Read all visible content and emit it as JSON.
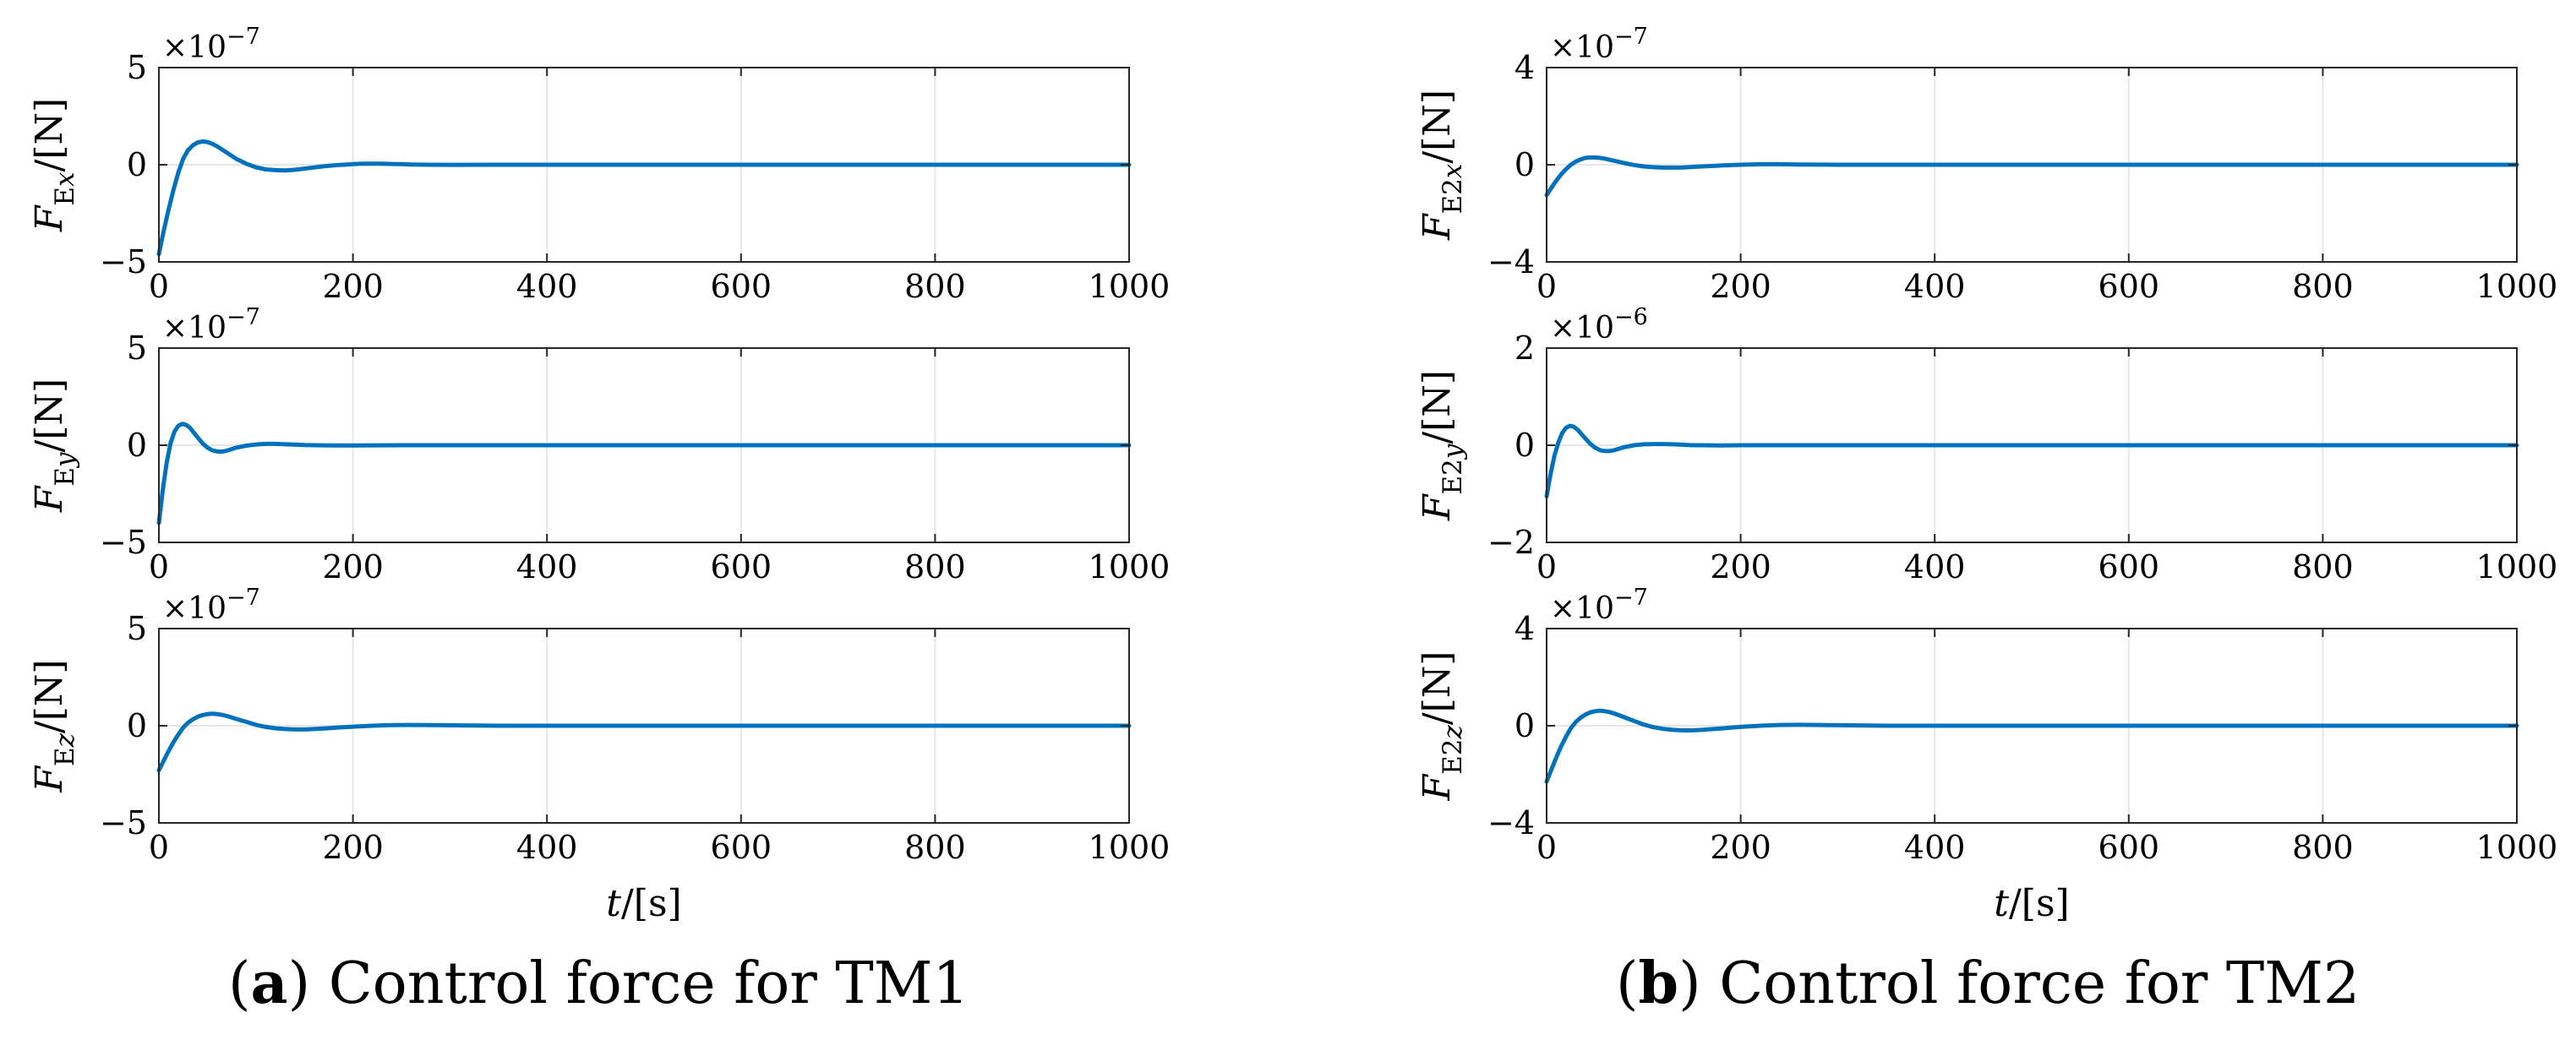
{
  "chart_data": [
    {
      "type": "line",
      "panel": "a",
      "row": 0,
      "ylabel": {
        "symbol": "F",
        "subscript": "Ex",
        "subscript_parts": [
          "E",
          "x"
        ],
        "unit": "/[N]"
      },
      "exponent": "×10",
      "exponent_power": "−7",
      "ylim": [
        -5,
        5
      ],
      "yticks": [
        -5,
        0,
        5
      ],
      "ytick_labels": [
        "−5",
        "0",
        "5"
      ],
      "xlim": [
        0,
        1000
      ],
      "xticks": [
        0,
        200,
        400,
        600,
        800,
        1000
      ],
      "xtick_labels": [
        "0",
        "200",
        "400",
        "600",
        "800",
        "1000"
      ],
      "grid": true,
      "series": [
        {
          "name": "FEx",
          "color": "#0072BD",
          "x": [
            0,
            5,
            10,
            15,
            20,
            25,
            30,
            35,
            40,
            45,
            50,
            55,
            60,
            70,
            80,
            90,
            100,
            110,
            120,
            130,
            140,
            150,
            160,
            170,
            180,
            190,
            200,
            210,
            220,
            230,
            240,
            250,
            260,
            280,
            300,
            350,
            400,
            500,
            600,
            700,
            800,
            900,
            1000
          ],
          "y": [
            -4.6,
            -3.4,
            -2.3,
            -1.3,
            -0.4,
            0.3,
            0.75,
            1.0,
            1.15,
            1.2,
            1.17,
            1.08,
            0.95,
            0.62,
            0.3,
            0.05,
            -0.13,
            -0.24,
            -0.28,
            -0.29,
            -0.26,
            -0.2,
            -0.14,
            -0.08,
            -0.03,
            0.0,
            0.03,
            0.05,
            0.055,
            0.05,
            0.04,
            0.03,
            0.015,
            0.0,
            -0.005,
            0,
            0,
            0,
            0,
            0,
            0,
            0,
            0
          ]
        }
      ]
    },
    {
      "type": "line",
      "panel": "a",
      "row": 1,
      "ylabel": {
        "symbol": "F",
        "subscript": "Ey",
        "subscript_parts": [
          "E",
          "y"
        ],
        "unit": "/[N]"
      },
      "exponent": "×10",
      "exponent_power": "−7",
      "ylim": [
        -5,
        5
      ],
      "yticks": [
        -5,
        0,
        5
      ],
      "ytick_labels": [
        "−5",
        "0",
        "5"
      ],
      "xlim": [
        0,
        1000
      ],
      "xticks": [
        0,
        200,
        400,
        600,
        800,
        1000
      ],
      "xtick_labels": [
        "0",
        "200",
        "400",
        "600",
        "800",
        "1000"
      ],
      "grid": true,
      "series": [
        {
          "name": "FEy",
          "color": "#0072BD",
          "x": [
            0,
            4,
            8,
            12,
            16,
            20,
            24,
            28,
            32,
            36,
            40,
            45,
            50,
            55,
            60,
            65,
            70,
            75,
            80,
            90,
            100,
            110,
            120,
            130,
            140,
            150,
            160,
            180,
            200,
            250,
            300,
            400,
            500,
            600,
            700,
            800,
            900,
            1000
          ],
          "y": [
            -4.0,
            -2.3,
            -0.9,
            0.1,
            0.7,
            1.0,
            1.1,
            1.05,
            0.9,
            0.65,
            0.4,
            0.1,
            -0.12,
            -0.26,
            -0.32,
            -0.33,
            -0.28,
            -0.2,
            -0.12,
            -0.02,
            0.04,
            0.07,
            0.07,
            0.05,
            0.03,
            0.01,
            0.0,
            -0.01,
            -0.01,
            0,
            0,
            0,
            0,
            0,
            0,
            0,
            0,
            0
          ]
        }
      ]
    },
    {
      "type": "line",
      "panel": "a",
      "row": 2,
      "ylabel": {
        "symbol": "F",
        "subscript": "Ez",
        "subscript_parts": [
          "E",
          "z"
        ],
        "unit": "/[N]"
      },
      "exponent": "×10",
      "exponent_power": "−7",
      "ylim": [
        -5,
        5
      ],
      "yticks": [
        -5,
        0,
        5
      ],
      "ytick_labels": [
        "−5",
        "0",
        "5"
      ],
      "xlim": [
        0,
        1000
      ],
      "xticks": [
        0,
        200,
        400,
        600,
        800,
        1000
      ],
      "xtick_labels": [
        "0",
        "200",
        "400",
        "600",
        "800",
        "1000"
      ],
      "xlabel": {
        "symbol": "t",
        "unit": "/[s]"
      },
      "grid": true,
      "series": [
        {
          "name": "FEz",
          "color": "#0072BD",
          "x": [
            0,
            5,
            10,
            15,
            20,
            25,
            30,
            35,
            40,
            45,
            50,
            55,
            60,
            65,
            70,
            80,
            90,
            100,
            110,
            120,
            130,
            140,
            150,
            160,
            170,
            180,
            190,
            200,
            220,
            240,
            260,
            280,
            300,
            350,
            400,
            500,
            600,
            700,
            800,
            900,
            1000
          ],
          "y": [
            -2.3,
            -1.8,
            -1.3,
            -0.85,
            -0.45,
            -0.1,
            0.15,
            0.33,
            0.46,
            0.55,
            0.6,
            0.62,
            0.6,
            0.56,
            0.5,
            0.35,
            0.2,
            0.05,
            -0.06,
            -0.13,
            -0.17,
            -0.19,
            -0.19,
            -0.17,
            -0.14,
            -0.11,
            -0.08,
            -0.05,
            0.0,
            0.03,
            0.04,
            0.03,
            0.02,
            0.0,
            0,
            0,
            0,
            0,
            0,
            0,
            0
          ]
        }
      ]
    },
    {
      "type": "line",
      "panel": "b",
      "row": 0,
      "ylabel": {
        "symbol": "F",
        "subscript": "E2x",
        "subscript_parts": [
          "E2",
          "x"
        ],
        "unit": "/[N]"
      },
      "exponent": "×10",
      "exponent_power": "−7",
      "ylim": [
        -4,
        4
      ],
      "yticks": [
        -4,
        0,
        4
      ],
      "ytick_labels": [
        "−4",
        "0",
        "4"
      ],
      "xlim": [
        0,
        1000
      ],
      "xticks": [
        0,
        200,
        400,
        600,
        800,
        1000
      ],
      "xtick_labels": [
        "0",
        "200",
        "400",
        "600",
        "800",
        "1000"
      ],
      "grid": true,
      "series": [
        {
          "name": "FE2x",
          "color": "#0072BD",
          "x": [
            0,
            5,
            10,
            15,
            20,
            25,
            30,
            35,
            40,
            45,
            50,
            55,
            60,
            70,
            80,
            90,
            100,
            110,
            120,
            130,
            140,
            150,
            160,
            180,
            200,
            220,
            240,
            260,
            300,
            400,
            500,
            600,
            700,
            800,
            900,
            1000
          ],
          "y": [
            -1.25,
            -0.95,
            -0.65,
            -0.4,
            -0.18,
            0.0,
            0.13,
            0.22,
            0.28,
            0.3,
            0.3,
            0.28,
            0.25,
            0.16,
            0.07,
            -0.01,
            -0.07,
            -0.1,
            -0.12,
            -0.12,
            -0.11,
            -0.09,
            -0.07,
            -0.03,
            0.0,
            0.02,
            0.02,
            0.01,
            0,
            0,
            0,
            0,
            0,
            0,
            0,
            0
          ]
        }
      ]
    },
    {
      "type": "line",
      "panel": "b",
      "row": 1,
      "ylabel": {
        "symbol": "F",
        "subscript": "E2y",
        "subscript_parts": [
          "E2",
          "y"
        ],
        "unit": "/[N]"
      },
      "exponent": "×10",
      "exponent_power": "−6",
      "ylim": [
        -2,
        2
      ],
      "yticks": [
        -2,
        0,
        2
      ],
      "ytick_labels": [
        "−2",
        "0",
        "2"
      ],
      "xlim": [
        0,
        1000
      ],
      "xticks": [
        0,
        200,
        400,
        600,
        800,
        1000
      ],
      "xtick_labels": [
        "0",
        "200",
        "400",
        "600",
        "800",
        "1000"
      ],
      "grid": true,
      "series": [
        {
          "name": "FE2y",
          "color": "#0072BD",
          "x": [
            0,
            4,
            8,
            12,
            16,
            20,
            24,
            28,
            32,
            36,
            40,
            45,
            50,
            55,
            60,
            65,
            70,
            75,
            80,
            90,
            100,
            110,
            120,
            130,
            140,
            150,
            160,
            180,
            200,
            250,
            300,
            400,
            500,
            600,
            700,
            800,
            900,
            1000
          ],
          "y": [
            -1.05,
            -0.6,
            -0.22,
            0.05,
            0.25,
            0.36,
            0.4,
            0.38,
            0.32,
            0.23,
            0.14,
            0.03,
            -0.05,
            -0.1,
            -0.12,
            -0.12,
            -0.1,
            -0.07,
            -0.04,
            0.0,
            0.02,
            0.025,
            0.025,
            0.02,
            0.01,
            0.0,
            0.0,
            -0.005,
            0,
            0,
            0,
            0,
            0,
            0,
            0,
            0,
            0,
            0
          ]
        }
      ]
    },
    {
      "type": "line",
      "panel": "b",
      "row": 2,
      "ylabel": {
        "symbol": "F",
        "subscript": "E2z",
        "subscript_parts": [
          "E2",
          "z"
        ],
        "unit": "/[N]"
      },
      "exponent": "×10",
      "exponent_power": "−7",
      "ylim": [
        -4,
        4
      ],
      "yticks": [
        -4,
        0,
        4
      ],
      "ytick_labels": [
        "−4",
        "0",
        "4"
      ],
      "xlim": [
        0,
        1000
      ],
      "xticks": [
        0,
        200,
        400,
        600,
        800,
        1000
      ],
      "xtick_labels": [
        "0",
        "200",
        "400",
        "600",
        "800",
        "1000"
      ],
      "xlabel": {
        "symbol": "t",
        "unit": "/[s]"
      },
      "grid": true,
      "series": [
        {
          "name": "FE2z",
          "color": "#0072BD",
          "x": [
            0,
            5,
            10,
            15,
            20,
            25,
            30,
            35,
            40,
            45,
            50,
            55,
            60,
            65,
            70,
            80,
            90,
            100,
            110,
            120,
            130,
            140,
            150,
            160,
            170,
            180,
            190,
            200,
            220,
            240,
            260,
            280,
            300,
            350,
            400,
            500,
            600,
            700,
            800,
            900,
            1000
          ],
          "y": [
            -2.3,
            -1.8,
            -1.3,
            -0.85,
            -0.45,
            -0.1,
            0.15,
            0.33,
            0.46,
            0.55,
            0.6,
            0.62,
            0.6,
            0.56,
            0.5,
            0.35,
            0.2,
            0.05,
            -0.06,
            -0.13,
            -0.17,
            -0.19,
            -0.19,
            -0.17,
            -0.14,
            -0.11,
            -0.08,
            -0.05,
            0.0,
            0.03,
            0.04,
            0.03,
            0.02,
            0.0,
            0,
            0,
            0,
            0,
            0,
            0,
            0
          ]
        }
      ]
    }
  ],
  "captions": {
    "a": {
      "label": "a",
      "text": "Control force for TM1"
    },
    "b": {
      "label": "b",
      "text": "Control force for TM2"
    }
  },
  "colors": {
    "line": "#0072BD",
    "grid": "#e6e6e6",
    "axis": "#262626"
  }
}
